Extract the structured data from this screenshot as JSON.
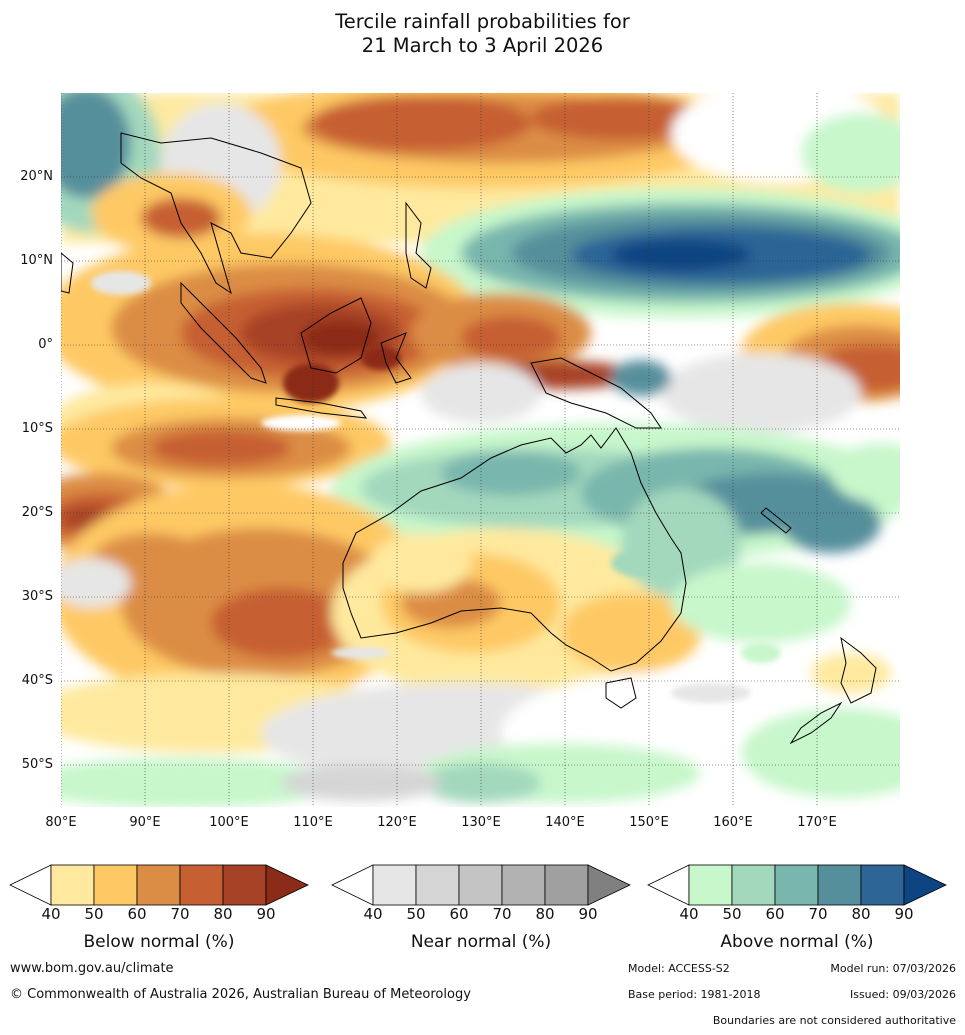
{
  "title": {
    "line1": "Tercile rainfall probabilities for",
    "line2": "21 March to 3 April 2026"
  },
  "map": {
    "lon_range": [
      80,
      180
    ],
    "lat_range": [
      -55,
      30
    ],
    "lat_labels": [
      "20°N",
      "10°N",
      "0°",
      "10°S",
      "20°S",
      "30°S",
      "40°S",
      "50°S"
    ],
    "lon_labels": [
      "80°E",
      "90°E",
      "100°E",
      "110°E",
      "120°E",
      "130°E",
      "140°E",
      "150°E",
      "160°E",
      "170°E"
    ],
    "grid": true
  },
  "legends": {
    "below": {
      "title": "Below normal (%)",
      "ticks": [
        "40",
        "50",
        "60",
        "70",
        "80",
        "90"
      ],
      "colors": [
        "#ffffff",
        "#fee99e",
        "#fec965",
        "#dc8d45",
        "#c65f31",
        "#a74226",
        "#8b2c19"
      ]
    },
    "near": {
      "title": "Near normal (%)",
      "ticks": [
        "40",
        "50",
        "60",
        "70",
        "80",
        "90"
      ],
      "colors": [
        "#ffffff",
        "#e6e6e6",
        "#d5d5d5",
        "#c4c4c4",
        "#b2b2b2",
        "#a0a0a0",
        "#808080"
      ]
    },
    "above": {
      "title": "Above normal (%)",
      "ticks": [
        "40",
        "50",
        "60",
        "70",
        "80",
        "90"
      ],
      "colors": [
        "#ffffff",
        "#c7f7cb",
        "#a3d8bd",
        "#79b6ad",
        "#568f9c",
        "#2c6596",
        "#0d4582"
      ]
    }
  },
  "footer": {
    "url": "www.bom.gov.au/climate",
    "copyright": "© Commonwealth of Australia 2026, Australian Bureau of Meteorology",
    "model": "Model: ACCESS-S2",
    "model_run": "Model run: 07/03/2026",
    "base_period": "Base period: 1981-2018",
    "issued": "Issued: 09/03/2026",
    "disclaimer": "Boundaries are not considered authoritative"
  }
}
